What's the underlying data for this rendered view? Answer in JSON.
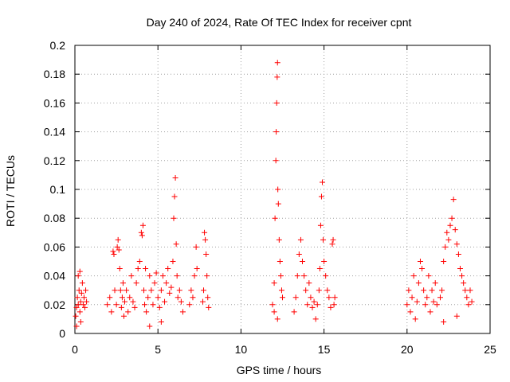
{
  "chart_data": {
    "type": "scatter",
    "title": "Day 240 of 2024, Rate Of TEC Index for receiver cpnt",
    "xlabel": "GPS time / hours",
    "ylabel": "ROTI / TECUs",
    "xlim": [
      0,
      25
    ],
    "ylim": [
      0,
      0.2
    ],
    "x_ticks": [
      0,
      5,
      10,
      15,
      20,
      25
    ],
    "x_tick_labels": [
      "0",
      "5",
      "10",
      "15",
      "20",
      "25"
    ],
    "y_ticks": [
      0,
      0.02,
      0.04,
      0.06,
      0.08,
      0.1,
      0.12,
      0.14,
      0.16,
      0.18,
      0.2
    ],
    "y_tick_labels": [
      "0",
      "0.02",
      "0.04",
      "0.06",
      "0.08",
      "0.1",
      "0.12",
      "0.14",
      "0.16",
      "0.18",
      "0.2"
    ],
    "grid": true,
    "marker": "+",
    "series_color": "#ff0000",
    "series": [
      {
        "name": "ROTI",
        "points": [
          [
            0.05,
            0.012
          ],
          [
            0.1,
            0.018
          ],
          [
            0.15,
            0.025
          ],
          [
            0.2,
            0.02
          ],
          [
            0.25,
            0.03
          ],
          [
            0.3,
            0.015
          ],
          [
            0.35,
            0.022
          ],
          [
            0.4,
            0.028
          ],
          [
            0.45,
            0.035
          ],
          [
            0.5,
            0.02
          ],
          [
            0.55,
            0.025
          ],
          [
            0.6,
            0.018
          ],
          [
            0.65,
            0.03
          ],
          [
            0.7,
            0.022
          ],
          [
            0.2,
            0.04
          ],
          [
            0.3,
            0.043
          ],
          [
            0.35,
            0.008
          ],
          [
            0.1,
            0.005
          ],
          [
            1.95,
            0.02
          ],
          [
            2.1,
            0.025
          ],
          [
            2.2,
            0.015
          ],
          [
            2.3,
            0.057
          ],
          [
            2.35,
            0.055
          ],
          [
            2.4,
            0.03
          ],
          [
            2.5,
            0.02
          ],
          [
            2.55,
            0.06
          ],
          [
            2.6,
            0.065
          ],
          [
            2.65,
            0.058
          ],
          [
            2.7,
            0.045
          ],
          [
            2.75,
            0.03
          ],
          [
            2.8,
            0.018
          ],
          [
            2.85,
            0.025
          ],
          [
            2.9,
            0.035
          ],
          [
            2.95,
            0.012
          ],
          [
            3.0,
            0.022
          ],
          [
            3.1,
            0.03
          ],
          [
            3.2,
            0.015
          ],
          [
            3.3,
            0.025
          ],
          [
            3.4,
            0.04
          ],
          [
            3.5,
            0.022
          ],
          [
            3.6,
            0.018
          ],
          [
            3.7,
            0.035
          ],
          [
            3.8,
            0.045
          ],
          [
            3.9,
            0.05
          ],
          [
            4.0,
            0.07
          ],
          [
            4.05,
            0.068
          ],
          [
            4.1,
            0.075
          ],
          [
            4.15,
            0.03
          ],
          [
            4.2,
            0.02
          ],
          [
            4.25,
            0.045
          ],
          [
            4.3,
            0.015
          ],
          [
            4.4,
            0.025
          ],
          [
            4.5,
            0.04
          ],
          [
            4.6,
            0.03
          ],
          [
            4.7,
            0.02
          ],
          [
            4.8,
            0.035
          ],
          [
            4.9,
            0.042
          ],
          [
            5.0,
            0.025
          ],
          [
            5.1,
            0.018
          ],
          [
            5.2,
            0.03
          ],
          [
            5.3,
            0.04
          ],
          [
            5.4,
            0.022
          ],
          [
            5.5,
            0.035
          ],
          [
            5.6,
            0.045
          ],
          [
            5.7,
            0.028
          ],
          [
            5.8,
            0.032
          ],
          [
            5.9,
            0.05
          ],
          [
            5.95,
            0.08
          ],
          [
            6.0,
            0.095
          ],
          [
            6.05,
            0.108
          ],
          [
            6.1,
            0.062
          ],
          [
            6.15,
            0.04
          ],
          [
            6.2,
            0.025
          ],
          [
            6.3,
            0.03
          ],
          [
            6.4,
            0.022
          ],
          [
            6.5,
            0.015
          ],
          [
            4.5,
            0.005
          ],
          [
            5.2,
            0.008
          ],
          [
            6.9,
            0.02
          ],
          [
            7.0,
            0.03
          ],
          [
            7.1,
            0.025
          ],
          [
            7.2,
            0.04
          ],
          [
            7.3,
            0.06
          ],
          [
            7.35,
            0.045
          ],
          [
            7.7,
            0.022
          ],
          [
            7.75,
            0.03
          ],
          [
            7.8,
            0.07
          ],
          [
            7.85,
            0.065
          ],
          [
            7.9,
            0.055
          ],
          [
            7.95,
            0.04
          ],
          [
            8.0,
            0.025
          ],
          [
            8.05,
            0.018
          ],
          [
            11.9,
            0.02
          ],
          [
            12.0,
            0.035
          ],
          [
            12.05,
            0.08
          ],
          [
            12.1,
            0.12
          ],
          [
            12.12,
            0.14
          ],
          [
            12.15,
            0.16
          ],
          [
            12.18,
            0.178
          ],
          [
            12.2,
            0.188
          ],
          [
            12.22,
            0.1
          ],
          [
            12.25,
            0.09
          ],
          [
            12.3,
            0.065
          ],
          [
            12.35,
            0.05
          ],
          [
            12.4,
            0.04
          ],
          [
            12.45,
            0.03
          ],
          [
            12.5,
            0.025
          ],
          [
            12.0,
            0.015
          ],
          [
            12.2,
            0.01
          ],
          [
            13.2,
            0.015
          ],
          [
            13.3,
            0.025
          ],
          [
            13.4,
            0.04
          ],
          [
            13.5,
            0.055
          ],
          [
            13.6,
            0.065
          ],
          [
            13.7,
            0.05
          ],
          [
            13.8,
            0.04
          ],
          [
            13.9,
            0.03
          ],
          [
            14.0,
            0.02
          ],
          [
            14.1,
            0.035
          ],
          [
            14.2,
            0.025
          ],
          [
            14.3,
            0.018
          ],
          [
            14.4,
            0.022
          ],
          [
            14.5,
            0.01
          ],
          [
            14.6,
            0.02
          ],
          [
            14.7,
            0.03
          ],
          [
            14.75,
            0.045
          ],
          [
            14.8,
            0.075
          ],
          [
            14.85,
            0.095
          ],
          [
            14.9,
            0.105
          ],
          [
            14.95,
            0.065
          ],
          [
            15.0,
            0.05
          ],
          [
            15.1,
            0.04
          ],
          [
            15.2,
            0.03
          ],
          [
            15.3,
            0.025
          ],
          [
            15.4,
            0.018
          ],
          [
            15.5,
            0.062
          ],
          [
            15.55,
            0.065
          ],
          [
            15.6,
            0.02
          ],
          [
            15.65,
            0.025
          ],
          [
            20.0,
            0.02
          ],
          [
            20.1,
            0.03
          ],
          [
            20.2,
            0.015
          ],
          [
            20.3,
            0.025
          ],
          [
            20.4,
            0.04
          ],
          [
            20.5,
            0.01
          ],
          [
            20.6,
            0.022
          ],
          [
            20.7,
            0.035
          ],
          [
            20.8,
            0.05
          ],
          [
            20.9,
            0.045
          ],
          [
            21.0,
            0.03
          ],
          [
            21.1,
            0.02
          ],
          [
            21.2,
            0.025
          ],
          [
            21.3,
            0.04
          ],
          [
            21.4,
            0.015
          ],
          [
            21.5,
            0.03
          ],
          [
            21.6,
            0.022
          ],
          [
            21.7,
            0.035
          ],
          [
            21.8,
            0.02
          ],
          [
            22.0,
            0.025
          ],
          [
            22.1,
            0.03
          ],
          [
            22.2,
            0.05
          ],
          [
            22.3,
            0.06
          ],
          [
            22.4,
            0.07
          ],
          [
            22.5,
            0.065
          ],
          [
            22.6,
            0.075
          ],
          [
            22.7,
            0.08
          ],
          [
            22.8,
            0.093
          ],
          [
            22.9,
            0.072
          ],
          [
            23.0,
            0.062
          ],
          [
            23.1,
            0.055
          ],
          [
            23.2,
            0.045
          ],
          [
            23.3,
            0.04
          ],
          [
            23.4,
            0.035
          ],
          [
            23.5,
            0.03
          ],
          [
            23.6,
            0.025
          ],
          [
            23.7,
            0.02
          ],
          [
            23.8,
            0.03
          ],
          [
            23.9,
            0.022
          ],
          [
            22.2,
            0.008
          ],
          [
            23.0,
            0.012
          ]
        ]
      }
    ]
  }
}
